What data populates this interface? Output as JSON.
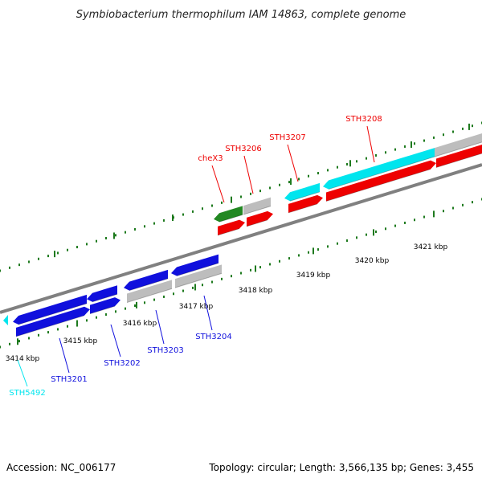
{
  "title": "Symbiobacterium thermophilum IAM 14863, complete genome",
  "footer": {
    "accession": "Accession: NC_006177",
    "summary": "Topology: circular; Length: 3,566,135 bp; Genes: 3,455"
  },
  "colors": {
    "blue": "#1010dd",
    "red": "#ee0000",
    "cyan": "#00e5ee",
    "green": "#228822",
    "grey": "#bdbdbd",
    "tick": "#1e7a1e",
    "backbone": "#808080"
  },
  "scale": {
    "unit": "kbp",
    "labels": [
      "3414 kbp",
      "3415 kbp",
      "3416 kbp",
      "3417 kbp",
      "3418 kbp",
      "3419 kbp",
      "3420 kbp",
      "3421 kbp"
    ]
  },
  "gene_labels": [
    {
      "name": "STH5492",
      "color": "cyan"
    },
    {
      "name": "STH3201",
      "color": "blue"
    },
    {
      "name": "STH3202",
      "color": "blue"
    },
    {
      "name": "STH3203",
      "color": "blue"
    },
    {
      "name": "STH3204",
      "color": "blue"
    },
    {
      "name": "cheX3",
      "color": "red"
    },
    {
      "name": "STH3206",
      "color": "red"
    },
    {
      "name": "STH3207",
      "color": "red"
    },
    {
      "name": "STH3208",
      "color": "red"
    }
  ]
}
